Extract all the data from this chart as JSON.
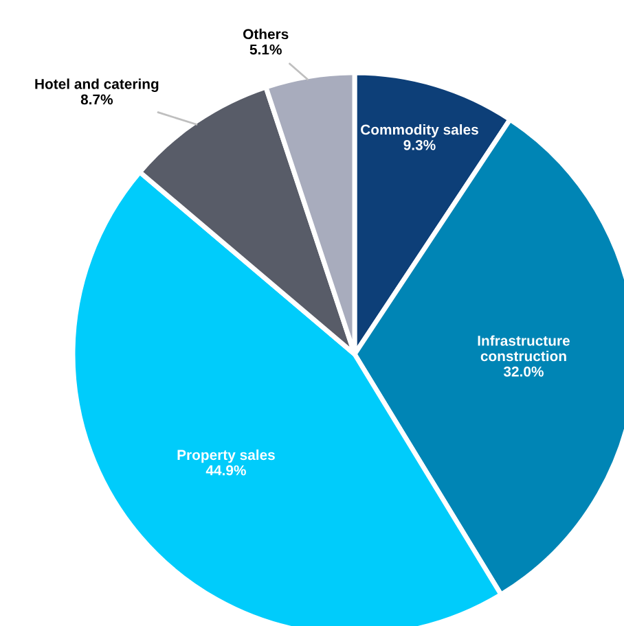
{
  "chart_data": {
    "type": "pie",
    "data_labels": true,
    "categories": [
      "Commodity sales",
      "Infrastructure construction",
      "Property sales",
      "Hotel and catering",
      "Others"
    ],
    "values": [
      9.3,
      32.0,
      44.9,
      8.7,
      5.1
    ],
    "value_labels": [
      "9.3%",
      "32.0%",
      "44.9%",
      "8.7%",
      "5.1%"
    ],
    "colors": [
      "#0d3f78",
      "#0085b5",
      "#00ccfb",
      "#585c68",
      "#a8acbd"
    ]
  }
}
